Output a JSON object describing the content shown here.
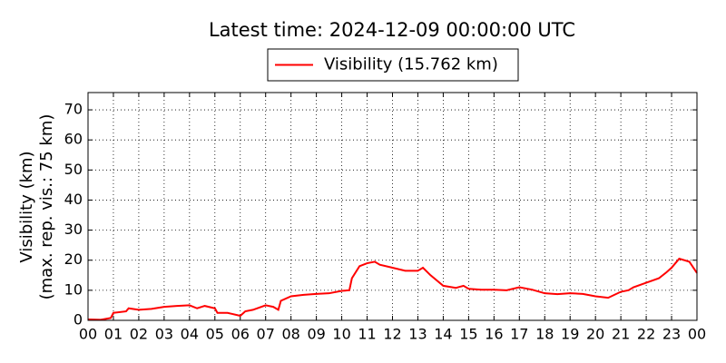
{
  "chart_data": {
    "type": "line",
    "title": "Latest time: 2024-12-09 00:00:00 UTC",
    "ylabel": [
      "Visibility (km)",
      "(max. rep. vis.: 75 km)"
    ],
    "x": [
      0,
      0.5,
      0.9,
      1.0,
      1.5,
      1.6,
      2,
      2.5,
      3,
      3.5,
      4,
      4.3,
      4.6,
      5,
      5.1,
      5.5,
      6,
      6.2,
      6.5,
      7,
      7.3,
      7.5,
      7.6,
      8,
      8.5,
      9,
      9.5,
      10,
      10.3,
      10.4,
      10.7,
      11,
      11.3,
      11.5,
      12,
      12.5,
      13,
      13.2,
      13.5,
      14,
      14.5,
      14.8,
      15,
      15.5,
      16,
      16.5,
      17,
      17.5,
      18,
      18.5,
      19,
      19.5,
      20,
      20.5,
      21,
      21.3,
      21.5,
      22,
      22.5,
      22.8,
      23,
      23.3,
      23.7,
      24
    ],
    "series": [
      {
        "name": "Visibility (15.762 km)",
        "color": "#ff0000",
        "values": [
          0.3,
          0.2,
          0.8,
          2.5,
          3,
          4,
          3.5,
          3.8,
          4.5,
          4.8,
          5,
          4,
          4.8,
          4,
          2.5,
          2.5,
          1.5,
          3,
          3.5,
          5,
          4.5,
          3.5,
          6.5,
          8,
          8.5,
          8.8,
          9,
          9.8,
          10,
          14,
          18,
          19,
          19.5,
          18.5,
          17.5,
          16.5,
          16.5,
          17.5,
          15,
          11.5,
          10.8,
          11.5,
          10.5,
          10.2,
          10.2,
          10,
          11,
          10.2,
          9,
          8.7,
          9,
          8.8,
          8,
          7.5,
          9.5,
          10,
          11,
          12.5,
          14,
          16,
          17.5,
          20.5,
          19.5,
          15.762
        ]
      }
    ],
    "xlim": [
      0,
      24
    ],
    "ylim": [
      0,
      75.75
    ],
    "xticks": [
      {
        "value": 0,
        "label": "00"
      },
      {
        "value": 1,
        "label": "01"
      },
      {
        "value": 2,
        "label": "02"
      },
      {
        "value": 3,
        "label": "03"
      },
      {
        "value": 4,
        "label": "04"
      },
      {
        "value": 5,
        "label": "05"
      },
      {
        "value": 6,
        "label": "06"
      },
      {
        "value": 7,
        "label": "07"
      },
      {
        "value": 8,
        "label": "08"
      },
      {
        "value": 9,
        "label": "09"
      },
      {
        "value": 10,
        "label": "10"
      },
      {
        "value": 11,
        "label": "11"
      },
      {
        "value": 12,
        "label": "12"
      },
      {
        "value": 13,
        "label": "13"
      },
      {
        "value": 14,
        "label": "14"
      },
      {
        "value": 15,
        "label": "15"
      },
      {
        "value": 16,
        "label": "16"
      },
      {
        "value": 17,
        "label": "17"
      },
      {
        "value": 18,
        "label": "18"
      },
      {
        "value": 19,
        "label": "19"
      },
      {
        "value": 20,
        "label": "20"
      },
      {
        "value": 21,
        "label": "21"
      },
      {
        "value": 22,
        "label": "22"
      },
      {
        "value": 23,
        "label": "23"
      },
      {
        "value": 24,
        "label": "00"
      }
    ],
    "yticks": [
      0,
      10,
      20,
      30,
      40,
      50,
      60,
      70
    ],
    "grid": true,
    "legend": "top"
  }
}
